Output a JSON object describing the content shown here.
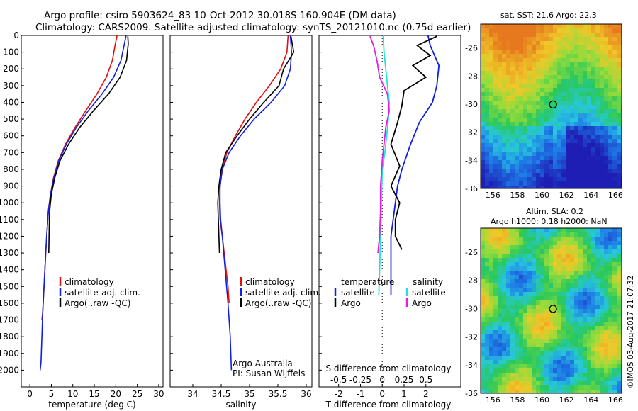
{
  "header": {
    "title_line1": "Argo profile: csiro 5903624_83 10-Oct-2012 30.018S 160.904E (DM data)",
    "title_line2": "Climatology: CARS2009. Satellite-adjusted climatology: synTS_20121010.nc (0.75d earlier)"
  },
  "colors": {
    "climatology": "#e01010",
    "satellite": "#1020e0",
    "argo": "#000000",
    "salinity_argo": "#e020e0",
    "salinity_sat": "#20e0e0"
  },
  "chart_data": [
    {
      "type": "line",
      "name": "temperature",
      "xlabel": "temperature (deg C)",
      "ylabel": "",
      "xlim": [
        -2,
        31
      ],
      "ylim": [
        2100,
        0
      ],
      "xticks": [
        "0",
        "5",
        "10",
        "15",
        "20",
        "25",
        "30"
      ],
      "yticks": [
        "0",
        "100",
        "200",
        "300",
        "400",
        "500",
        "600",
        "700",
        "800",
        "900",
        "1000",
        "1100",
        "1200",
        "1300",
        "1400",
        "1500",
        "1600",
        "1700",
        "1800",
        "1900",
        "2000"
      ],
      "legend": [
        "climatology",
        "satellite-adj. clim.",
        "Argo(..raw -QC)"
      ],
      "series": [
        {
          "name": "climatology",
          "color": "#e01010",
          "x": [
            20.3,
            19.9,
            19.2,
            17.8,
            15.6,
            13.0,
            10.5,
            8.3,
            6.6,
            5.5,
            4.8,
            4.3,
            3.9,
            3.6,
            3.3,
            3.0,
            2.8
          ],
          "y": [
            0,
            50,
            150,
            250,
            350,
            450,
            550,
            650,
            750,
            850,
            950,
            1050,
            1200,
            1350,
            1500,
            1650,
            1700
          ]
        },
        {
          "name": "satellite-adj. clim.",
          "color": "#1020e0",
          "x": [
            22.4,
            22.0,
            21.2,
            19.5,
            16.8,
            13.6,
            10.8,
            8.5,
            6.7,
            5.6,
            4.8,
            4.3,
            3.9,
            3.6,
            3.3,
            3.0,
            2.8,
            2.6,
            2.4
          ],
          "y": [
            0,
            50,
            150,
            250,
            350,
            450,
            550,
            650,
            750,
            850,
            950,
            1050,
            1200,
            1350,
            1500,
            1650,
            1800,
            1950,
            2000
          ]
        },
        {
          "name": "Argo(..raw -QC)",
          "color": "#000000",
          "x": [
            22.8,
            22.9,
            22.5,
            21.0,
            18.3,
            14.8,
            11.6,
            9.0,
            7.0,
            5.8,
            5.0,
            4.6,
            4.5,
            4.4
          ],
          "y": [
            5,
            50,
            150,
            250,
            350,
            450,
            550,
            650,
            750,
            850,
            950,
            1050,
            1150,
            1300
          ]
        }
      ]
    },
    {
      "type": "line",
      "name": "salinity",
      "xlabel": "salinity",
      "xlim": [
        33.6,
        36.1
      ],
      "ylim": [
        2100,
        0
      ],
      "xticks": [
        "34",
        "34.5",
        "35",
        "35.5",
        "36"
      ],
      "legend": [
        "climatology",
        "satellite-adj. clim.",
        "Argo(..raw -QC)"
      ],
      "series": [
        {
          "name": "climatology",
          "color": "#e01010",
          "x": [
            35.68,
            35.66,
            35.55,
            35.35,
            35.12,
            34.92,
            34.75,
            34.6,
            34.52,
            34.48,
            34.47,
            34.48,
            34.52,
            34.57,
            34.62,
            34.64
          ],
          "y": [
            0,
            100,
            200,
            300,
            400,
            500,
            600,
            700,
            800,
            900,
            1000,
            1100,
            1200,
            1350,
            1500,
            1600
          ]
        },
        {
          "name": "satellite-adj. clim.",
          "color": "#1020e0",
          "x": [
            35.72,
            35.74,
            35.72,
            35.62,
            35.38,
            35.08,
            34.84,
            34.64,
            34.52,
            34.48,
            34.48,
            34.49,
            34.52,
            34.57,
            34.62,
            34.66,
            34.68
          ],
          "y": [
            0,
            100,
            200,
            300,
            400,
            500,
            600,
            700,
            800,
            900,
            1000,
            1100,
            1200,
            1400,
            1600,
            1800,
            2000
          ]
        },
        {
          "name": "Argo(..raw -QC)",
          "color": "#000000",
          "x": [
            35.73,
            35.78,
            35.6,
            35.52,
            35.25,
            35.0,
            34.78,
            34.58,
            34.5,
            34.46,
            34.44,
            34.45,
            34.47
          ],
          "y": [
            5,
            100,
            200,
            300,
            400,
            500,
            600,
            700,
            800,
            900,
            1000,
            1100,
            1300
          ]
        }
      ],
      "annotation": [
        "Argo Australia",
        "PI: Susan Wijffels"
      ]
    },
    {
      "type": "line",
      "name": "difference",
      "xlabel": "T difference from climatology",
      "xlabel_top": "S difference from climatology",
      "xlim": [
        -2.9,
        3.6
      ],
      "ylim": [
        2100,
        0
      ],
      "xticks": [
        "-2",
        "-1",
        "0",
        "1",
        "2"
      ],
      "xticks_top": [
        "-0.5",
        "-0.25",
        "0",
        "0.25",
        "0.5"
      ],
      "legend": [
        "temperature",
        "satellite",
        "Argo",
        "salinity",
        "satellite",
        "Argo"
      ],
      "series": [
        {
          "name": "temperature satellite",
          "color": "#1020e0",
          "x": [
            2.1,
            2.2,
            2.6,
            2.5,
            2.3,
            1.7,
            1.3,
            0.9,
            0.7,
            0.6,
            0.5,
            0.4,
            0.4,
            0.4,
            0.4
          ],
          "y": [
            0,
            60,
            180,
            300,
            400,
            520,
            650,
            800,
            900,
            1000,
            1100,
            1200,
            1350,
            1500,
            1550
          ]
        },
        {
          "name": "temperature Argo",
          "color": "#000000",
          "x": [
            2.5,
            1.6,
            2.2,
            1.4,
            2.0,
            1.0,
            0.9,
            0.7,
            0.4,
            0.8,
            0.4,
            0.8,
            0.6,
            0.6,
            0.9
          ],
          "y": [
            5,
            60,
            120,
            180,
            250,
            330,
            420,
            520,
            650,
            780,
            900,
            1000,
            1100,
            1200,
            1280
          ]
        },
        {
          "name": "salinity satellite",
          "color": "#20e0e0",
          "x": [
            0.01,
            0.02,
            0.04,
            0.06,
            0.08,
            0.07,
            0.05,
            0.03,
            0.0,
            -0.01,
            -0.02,
            -0.03,
            -0.04
          ],
          "y": [
            0,
            100,
            200,
            300,
            400,
            500,
            600,
            700,
            800,
            1000,
            1200,
            1400,
            1550
          ]
        },
        {
          "name": "salinity Argo",
          "color": "#e020e0",
          "x": [
            -0.14,
            -0.1,
            -0.06,
            -0.03,
            0.06,
            0.08,
            0.04,
            0.02,
            0.0,
            -0.02,
            -0.02,
            -0.03,
            -0.05
          ],
          "y": [
            5,
            60,
            150,
            250,
            350,
            450,
            550,
            650,
            750,
            900,
            1050,
            1200,
            1300
          ]
        }
      ]
    },
    {
      "type": "heatmap",
      "name": "sst_map",
      "title": "sat. SST: 21.6 Argo: 22.3",
      "xticks": [
        "156",
        "158",
        "160",
        "162",
        "164",
        "166"
      ],
      "yticks": [
        "-26",
        "-28",
        "-30",
        "-32",
        "-34",
        "-36"
      ],
      "xlim": [
        155,
        166.5
      ],
      "ylim": [
        -36,
        -24.3
      ],
      "float_position": [
        160.904,
        -30.018
      ]
    },
    {
      "type": "heatmap",
      "name": "sla_map",
      "title_line1": "Altim. SLA: 0.2",
      "title_line2": "Argo h1000: 0.18 h2000: NaN",
      "xticks": [
        "156",
        "158",
        "160",
        "162",
        "164",
        "166"
      ],
      "yticks": [
        "-26",
        "-28",
        "-30",
        "-32",
        "-34",
        "-36"
      ],
      "xlim": [
        155,
        166.5
      ],
      "ylim": [
        -36,
        -24.3
      ],
      "float_position": [
        160.904,
        -30.018
      ]
    }
  ],
  "footer": {
    "credit": "©IMOS 03-Aug-2017 21:07:32"
  }
}
